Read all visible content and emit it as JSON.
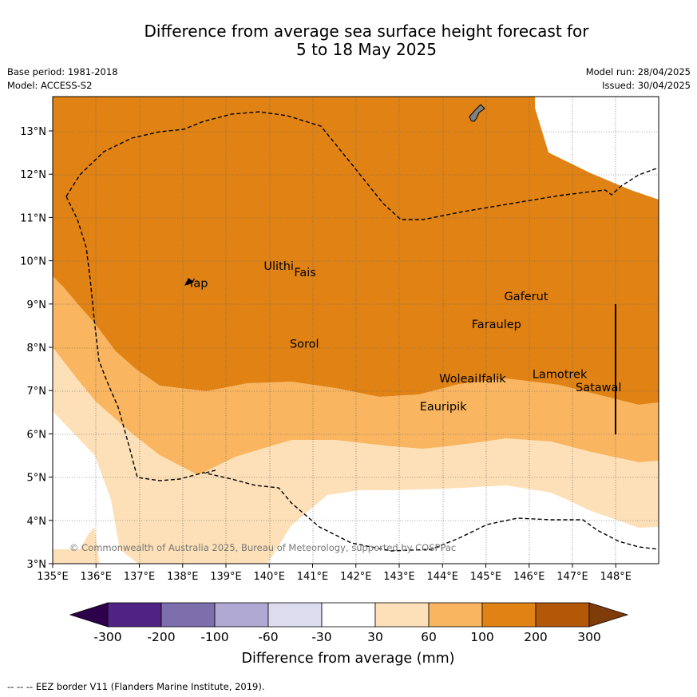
{
  "title": {
    "line1": "Difference from average sea surface height forecast for",
    "line2": "5 to 18 May 2025"
  },
  "meta": {
    "base_period": "Base period: 1981-2018",
    "model": "Model: ACCESS-S2",
    "model_run": "Model run: 28/04/2025",
    "issued": "Issued: 30/04/2025"
  },
  "axes": {
    "x_ticks": [
      "135°E",
      "136°E",
      "137°E",
      "138°E",
      "139°E",
      "140°E",
      "141°E",
      "142°E",
      "143°E",
      "144°E",
      "145°E",
      "146°E",
      "147°E",
      "148°E"
    ],
    "y_ticks": [
      "3°N",
      "4°N",
      "5°N",
      "6°N",
      "7°N",
      "8°N",
      "9°N",
      "10°N",
      "11°N",
      "12°N",
      "13°N"
    ],
    "lon_range": [
      135,
      149
    ],
    "lat_range": [
      3,
      13.8
    ]
  },
  "places": [
    {
      "name": "Yap",
      "lon": 138.05,
      "lat": 9.5
    },
    {
      "name": "Ulithi",
      "lon": 139.8,
      "lat": 9.9
    },
    {
      "name": "Fais",
      "lon": 140.5,
      "lat": 9.75
    },
    {
      "name": "Sorol",
      "lon": 140.4,
      "lat": 8.1
    },
    {
      "name": "Gaferut",
      "lon": 145.35,
      "lat": 9.2
    },
    {
      "name": "Faraulep",
      "lon": 144.6,
      "lat": 8.55
    },
    {
      "name": "Woleai",
      "lon": 143.85,
      "lat": 7.3
    },
    {
      "name": "Ifalik",
      "lon": 144.75,
      "lat": 7.3
    },
    {
      "name": "Lamotrek",
      "lon": 146.0,
      "lat": 7.4
    },
    {
      "name": "Satawal",
      "lon": 147.0,
      "lat": 7.1
    },
    {
      "name": "Eauripik",
      "lon": 143.4,
      "lat": 6.65
    }
  ],
  "copyright": "© Commonwealth of Australia 2025, Bureau of Meteorology, supported by COSPPac",
  "colorbar": {
    "title": "Difference from average (mm)",
    "levels": [
      "-300",
      "-200",
      "-100",
      "-60",
      "-30",
      "30",
      "60",
      "100",
      "200",
      "300"
    ],
    "colors": [
      "#4f2283",
      "#7d6fab",
      "#b0a9d3",
      "#dcdcee",
      "#ffffff",
      "#fde0b7",
      "#f9b560",
      "#e08214",
      "#b35806"
    ],
    "extend_low_color": "#2d004b",
    "extend_high_color": "#7f3b08"
  },
  "map_colors": {
    "c_30_60": "#fde0b7",
    "c_60_100": "#f9b560",
    "c_100_200": "#e08214",
    "land": "#808080"
  },
  "footnote": "--  --  -- EEZ border V11 (Flanders Marine Institute, 2019)."
}
